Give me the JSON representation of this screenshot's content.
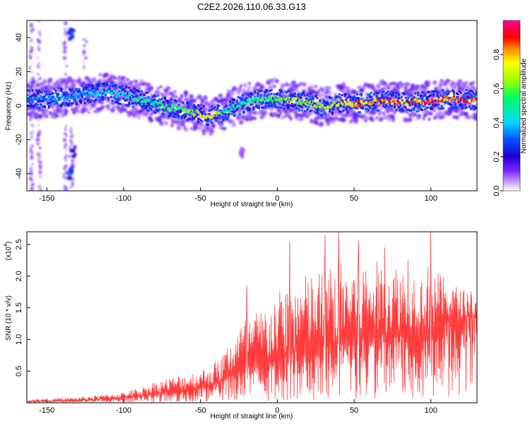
{
  "title": "C2E2.2026.110.06.33.G13",
  "chart_data": [
    {
      "type": "heatmap",
      "xlabel": "Height of straight line (km)",
      "ylabel": "Frequency (Hz)",
      "xlim": [
        -163,
        130
      ],
      "ylim": [
        -50,
        50
      ],
      "xticks": [
        -150,
        -100,
        -50,
        0,
        50,
        100
      ],
      "yticks": [
        -40,
        -20,
        0,
        20,
        40
      ],
      "colorbar": {
        "label": "Normalized spectral amplitude",
        "range": [
          0,
          1
        ],
        "ticks": [
          "0.0",
          "0.2",
          "0.4",
          "0.6",
          "0.8"
        ],
        "tick_values": [
          0.0,
          0.2,
          0.4,
          0.6,
          0.8
        ],
        "colors": [
          "#ffffff",
          "#a060ff",
          "#3000d0",
          "#0060ff",
          "#00e0ff",
          "#00ff60",
          "#a0ff00",
          "#ffff00",
          "#ff8000",
          "#ff0000",
          "#ff00a0"
        ]
      },
      "ridge": {
        "x": [
          -163,
          -150,
          -140,
          -130,
          -120,
          -110,
          -100,
          -90,
          -80,
          -70,
          -60,
          -50,
          -45,
          -40,
          -35,
          -30,
          -25,
          -20,
          -10,
          0,
          10,
          20,
          30,
          35,
          40,
          50,
          60,
          70,
          80,
          90,
          100,
          110,
          120,
          130
        ],
        "freq": [
          4,
          4,
          5,
          6,
          7,
          8,
          6,
          4,
          1,
          -1,
          -3,
          -5,
          -6,
          -5,
          -4,
          -1,
          0,
          2,
          4,
          4,
          3,
          2,
          -1,
          0,
          2,
          1,
          2,
          3,
          2,
          2,
          3,
          4,
          4,
          3
        ],
        "amplitude": [
          0.35,
          0.35,
          0.4,
          0.4,
          0.4,
          0.45,
          0.5,
          0.55,
          0.55,
          0.6,
          0.7,
          0.8,
          0.8,
          0.75,
          0.6,
          0.5,
          0.5,
          0.55,
          0.6,
          0.7,
          0.75,
          0.75,
          0.7,
          0.75,
          0.85,
          0.9,
          0.9,
          0.92,
          0.9,
          0.92,
          0.95,
          0.95,
          0.95,
          0.9
        ]
      },
      "streaks": [
        {
          "x": -160,
          "from": -50,
          "to": 50
        },
        {
          "x": -155,
          "from": -50,
          "to": 50
        },
        {
          "x": -138,
          "from": -50,
          "to": 50
        },
        {
          "x": -134,
          "from": -48,
          "to": -10
        },
        {
          "x": -125,
          "from": 10,
          "to": 40
        }
      ],
      "blobs": [
        {
          "x": -134,
          "freq": 42,
          "amplitude": 0.3
        },
        {
          "x": -135,
          "freq": -40,
          "amplitude": 0.3
        },
        {
          "x": -133,
          "freq": -27,
          "amplitude": 0.2
        },
        {
          "x": -23,
          "freq": -27,
          "amplitude": 0.1
        }
      ]
    },
    {
      "type": "line",
      "xlabel": "Height of straight line (km)",
      "ylabel": "SNR (10 * v/v)",
      "y_scale_label": "(x10",
      "y_scale_exponent": "4",
      "xlim": [
        -163,
        130
      ],
      "ylim": [
        0,
        2.7
      ],
      "xticks": [
        -150,
        -100,
        -50,
        0,
        50,
        100
      ],
      "yticks": [
        0.5,
        1.0,
        1.5,
        2.0,
        2.5
      ],
      "ytick_labels": [
        "0.5",
        "1.0",
        "1.5",
        "2.0",
        "2.5"
      ],
      "color": "#ff3b3b",
      "envelope": {
        "x": [
          -163,
          -140,
          -120,
          -100,
          -90,
          -80,
          -70,
          -60,
          -50,
          -40,
          -35,
          -30,
          -25,
          -20,
          -10,
          0,
          10,
          20,
          30,
          40,
          50,
          60,
          70,
          80,
          90,
          95,
          100,
          105,
          110,
          120,
          130
        ],
        "base": [
          0.02,
          0.03,
          0.05,
          0.08,
          0.1,
          0.15,
          0.18,
          0.2,
          0.25,
          0.3,
          0.35,
          0.45,
          0.5,
          0.55,
          0.6,
          0.7,
          0.8,
          0.85,
          0.9,
          0.95,
          1.0,
          1.05,
          1.1,
          1.15,
          1.2,
          1.2,
          1.1,
          1.3,
          1.35,
          1.35,
          1.4
        ],
        "spread": [
          0.05,
          0.06,
          0.08,
          0.12,
          0.18,
          0.25,
          0.3,
          0.35,
          0.35,
          0.5,
          0.6,
          0.8,
          1.0,
          1.1,
          1.2,
          1.4,
          1.5,
          1.6,
          1.6,
          1.7,
          1.7,
          1.6,
          1.5,
          1.4,
          1.2,
          1.1,
          1.6,
          1.0,
          0.8,
          0.6,
          0.5
        ]
      },
      "peaks": [
        {
          "x": -20,
          "y": 1.85
        },
        {
          "x": 8,
          "y": 2.55
        },
        {
          "x": 31,
          "y": 2.65
        },
        {
          "x": 40,
          "y": 2.7
        },
        {
          "x": 53,
          "y": 2.55
        },
        {
          "x": 100,
          "y": 2.7
        },
        {
          "x": 85,
          "y": 2.25
        },
        {
          "x": 70,
          "y": 2.45
        }
      ]
    }
  ]
}
